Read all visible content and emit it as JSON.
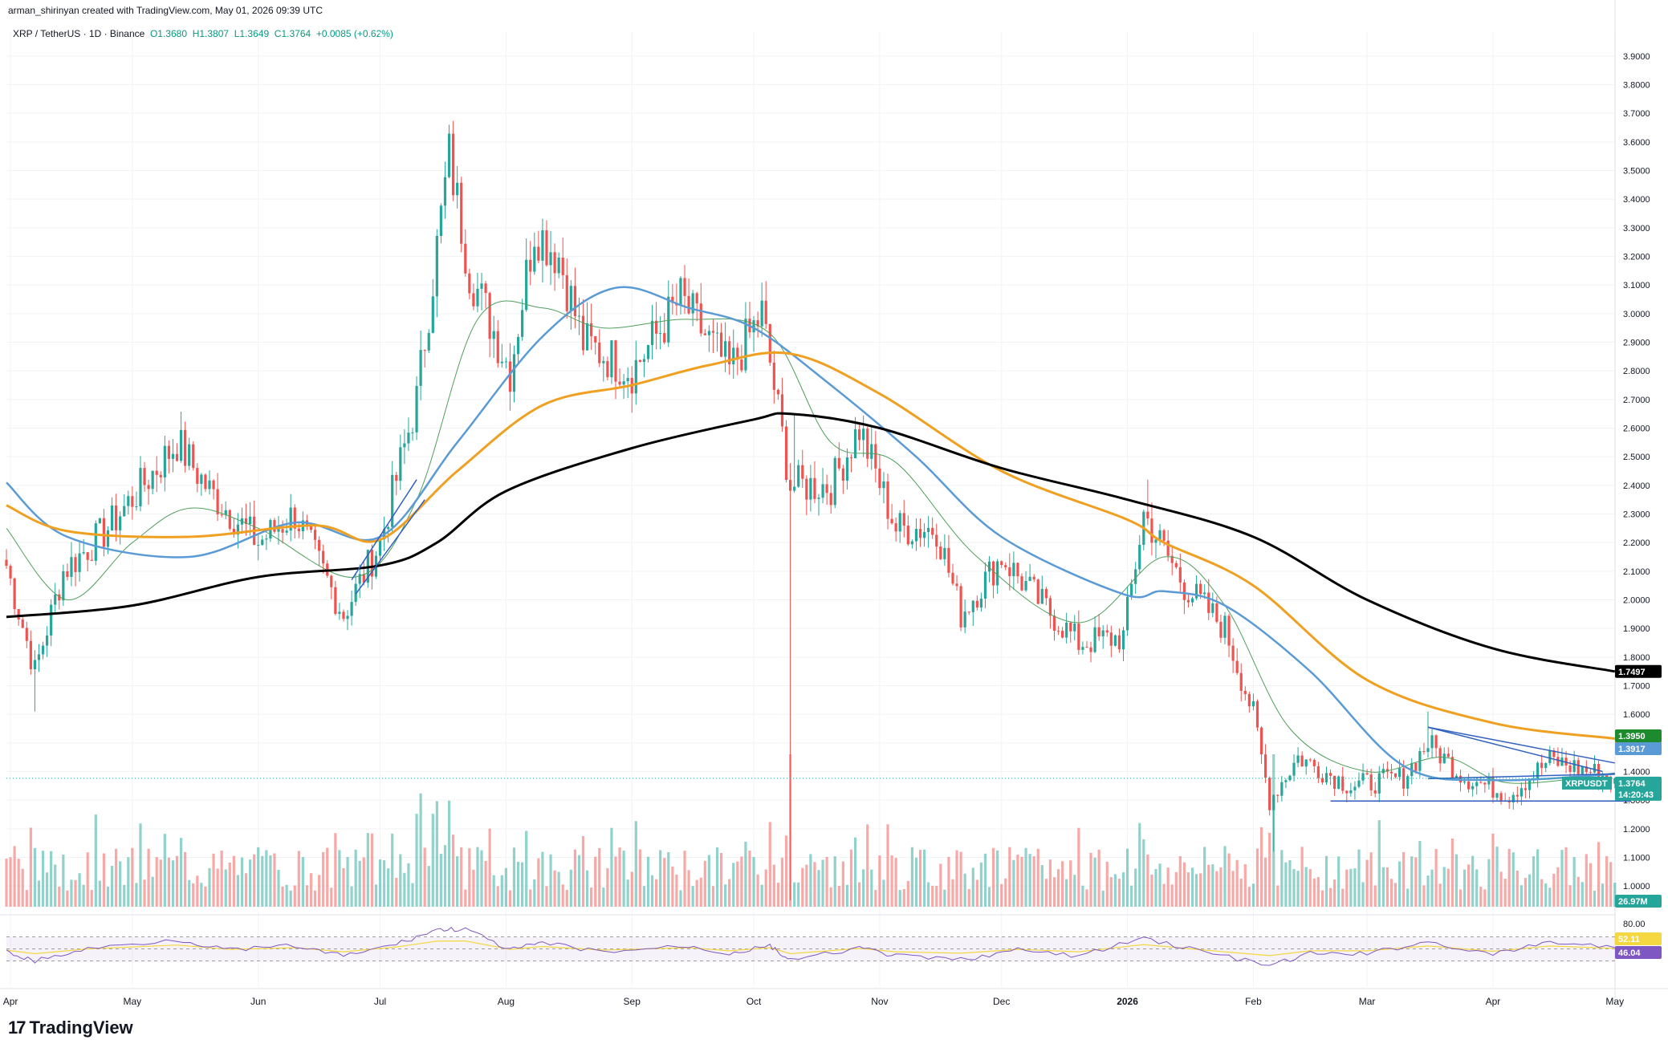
{
  "header": {
    "caption": "arman_shirinyan created with TradingView.com, May 01, 2026 09:39 UTC"
  },
  "legend": {
    "symbol": "XRP / TetherUS · 1D · Binance",
    "open": "O1.3680",
    "high": "H1.3807",
    "low": "L1.3649",
    "close": "C1.3764",
    "change": "+0.0085 (+0.62%)"
  },
  "brand": {
    "name": "TradingView",
    "logo_glyph": "17"
  },
  "colors": {
    "up": "#26a69a",
    "down": "#ef5350",
    "ema_fast": "#4f9f5a",
    "ma_50": "#5b9bd5",
    "ma_100": "#f0a020",
    "ma_200": "#000000",
    "trendline": "#3060c0",
    "rsi": "#7e57c2",
    "rsi_ma": "#f5d742"
  },
  "chart_data": {
    "type": "candlestick",
    "symbol": "XRPUSDT",
    "timeframe": "1D",
    "price_axis_ticks": [
      "3.9000",
      "3.8000",
      "3.7000",
      "3.6000",
      "3.5000",
      "3.4000",
      "3.3000",
      "3.2000",
      "3.1000",
      "3.0000",
      "2.9000",
      "2.8000",
      "2.7000",
      "2.6000",
      "2.5000",
      "2.4000",
      "2.3000",
      "2.2000",
      "2.1000",
      "2.0000",
      "1.9000",
      "1.8000",
      "1.7000",
      "1.6000",
      "1.5000",
      "1.4000",
      "1.3000",
      "1.2000",
      "1.1000",
      "1.0000"
    ],
    "price_range": [
      0.95,
      3.95
    ],
    "time_axis_labels": [
      "Apr",
      "May",
      "Jun",
      "Jul",
      "Aug",
      "Sep",
      "Oct",
      "Nov",
      "Dec",
      "2026",
      "Feb",
      "Mar",
      "Apr",
      "May"
    ],
    "ma_tags": [
      {
        "value": "1.7497",
        "color": "#000000"
      },
      {
        "value": "1.5150",
        "color": "#f0a020"
      },
      {
        "value": "1.3950",
        "color": "#1e8a2e"
      },
      {
        "value": "1.3917",
        "color": "#5b9bd5"
      }
    ],
    "price_tag": {
      "label": "XRPUSDT",
      "value": "1.3764",
      "countdown": "14:20:43"
    },
    "volume_tag": "26.97M",
    "rsi": {
      "upper": "80.00",
      "value": "52.11",
      "ma_value": "46.04"
    },
    "anchors": [
      {
        "m": "2025-03-31",
        "p": 2.12
      },
      {
        "m": "2025-04-07",
        "p": 1.75
      },
      {
        "m": "2025-04-14",
        "p": 2.1
      },
      {
        "m": "2025-04-25",
        "p": 2.25
      },
      {
        "m": "2025-05-12",
        "p": 2.55
      },
      {
        "m": "2025-05-20",
        "p": 2.38
      },
      {
        "m": "2025-06-01",
        "p": 2.2
      },
      {
        "m": "2025-06-10",
        "p": 2.3
      },
      {
        "m": "2025-06-22",
        "p": 1.95
      },
      {
        "m": "2025-07-01",
        "p": 2.2
      },
      {
        "m": "2025-07-10",
        "p": 2.7
      },
      {
        "m": "2025-07-18",
        "p": 3.55
      },
      {
        "m": "2025-07-23",
        "p": 3.15
      },
      {
        "m": "2025-08-02",
        "p": 2.8
      },
      {
        "m": "2025-08-08",
        "p": 3.3
      },
      {
        "m": "2025-08-14",
        "p": 3.2
      },
      {
        "m": "2025-08-20",
        "p": 2.9
      },
      {
        "m": "2025-09-01",
        "p": 2.8
      },
      {
        "m": "2025-09-13",
        "p": 3.05
      },
      {
        "m": "2025-09-25",
        "p": 2.8
      },
      {
        "m": "2025-10-03",
        "p": 3.0
      },
      {
        "m": "2025-10-10",
        "p": 2.4
      },
      {
        "m": "2025-10-20",
        "p": 2.4
      },
      {
        "m": "2025-10-27",
        "p": 2.6
      },
      {
        "m": "2025-11-05",
        "p": 2.25
      },
      {
        "m": "2025-11-15",
        "p": 2.25
      },
      {
        "m": "2025-11-21",
        "p": 1.95
      },
      {
        "m": "2025-12-01",
        "p": 2.15
      },
      {
        "m": "2025-12-10",
        "p": 2.0
      },
      {
        "m": "2025-12-20",
        "p": 1.85
      },
      {
        "m": "2025-12-31",
        "p": 1.87
      },
      {
        "m": "2026-01-05",
        "p": 2.3
      },
      {
        "m": "2026-01-15",
        "p": 2.05
      },
      {
        "m": "2026-01-25",
        "p": 1.9
      },
      {
        "m": "2026-02-01",
        "p": 1.6
      },
      {
        "m": "2026-02-05",
        "p": 1.3
      },
      {
        "m": "2026-02-12",
        "p": 1.45
      },
      {
        "m": "2026-02-25",
        "p": 1.35
      },
      {
        "m": "2026-03-10",
        "p": 1.38
      },
      {
        "m": "2026-03-16",
        "p": 1.5
      },
      {
        "m": "2026-03-25",
        "p": 1.38
      },
      {
        "m": "2026-04-05",
        "p": 1.32
      },
      {
        "m": "2026-04-15",
        "p": 1.44
      },
      {
        "m": "2026-04-25",
        "p": 1.4
      },
      {
        "m": "2026-05-01",
        "p": 1.3764
      }
    ],
    "spikes": [
      {
        "m": "2025-04-07",
        "low": 1.61
      },
      {
        "m": "2025-07-18",
        "high": 3.66
      },
      {
        "m": "2025-10-10",
        "low": 0.95
      },
      {
        "m": "2025-10-11",
        "high": 2.65
      },
      {
        "m": "2026-01-06",
        "high": 2.42
      },
      {
        "m": "2026-02-06",
        "low": 1.12
      },
      {
        "m": "2026-03-16",
        "high": 1.61
      }
    ],
    "overlays": {
      "ma200": [
        {
          "m": "2025-03-31",
          "p": 1.94
        },
        {
          "m": "2025-05-01",
          "p": 1.98
        },
        {
          "m": "2025-06-01",
          "p": 2.08
        },
        {
          "m": "2025-07-01",
          "p": 2.12
        },
        {
          "m": "2025-07-15",
          "p": 2.2
        },
        {
          "m": "2025-08-01",
          "p": 2.38
        },
        {
          "m": "2025-09-01",
          "p": 2.53
        },
        {
          "m": "2025-10-01",
          "p": 2.63
        },
        {
          "m": "2025-10-10",
          "p": 2.65
        },
        {
          "m": "2025-11-01",
          "p": 2.6
        },
        {
          "m": "2025-12-01",
          "p": 2.46
        },
        {
          "m": "2026-01-01",
          "p": 2.35
        },
        {
          "m": "2026-02-01",
          "p": 2.22
        },
        {
          "m": "2026-03-01",
          "p": 2.0
        },
        {
          "m": "2026-04-01",
          "p": 1.83
        },
        {
          "m": "2026-05-01",
          "p": 1.7497
        }
      ],
      "ma100": [
        {
          "m": "2025-03-31",
          "p": 2.33
        },
        {
          "m": "2025-04-15",
          "p": 2.24
        },
        {
          "m": "2025-05-15",
          "p": 2.22
        },
        {
          "m": "2025-06-15",
          "p": 2.26
        },
        {
          "m": "2025-07-01",
          "p": 2.21
        },
        {
          "m": "2025-07-20",
          "p": 2.45
        },
        {
          "m": "2025-08-10",
          "p": 2.68
        },
        {
          "m": "2025-09-01",
          "p": 2.75
        },
        {
          "m": "2025-09-20",
          "p": 2.82
        },
        {
          "m": "2025-10-10",
          "p": 2.86
        },
        {
          "m": "2025-11-01",
          "p": 2.72
        },
        {
          "m": "2025-12-01",
          "p": 2.45
        },
        {
          "m": "2026-01-01",
          "p": 2.28
        },
        {
          "m": "2026-01-10",
          "p": 2.2
        },
        {
          "m": "2026-02-01",
          "p": 2.05
        },
        {
          "m": "2026-03-01",
          "p": 1.72
        },
        {
          "m": "2026-04-01",
          "p": 1.57
        },
        {
          "m": "2026-05-01",
          "p": 1.515
        }
      ],
      "ma50": [
        {
          "m": "2025-03-31",
          "p": 2.41
        },
        {
          "m": "2025-04-15",
          "p": 2.22
        },
        {
          "m": "2025-05-15",
          "p": 2.15
        },
        {
          "m": "2025-06-10",
          "p": 2.27
        },
        {
          "m": "2025-07-01",
          "p": 2.22
        },
        {
          "m": "2025-07-20",
          "p": 2.55
        },
        {
          "m": "2025-08-10",
          "p": 2.92
        },
        {
          "m": "2025-08-28",
          "p": 3.09
        },
        {
          "m": "2025-09-15",
          "p": 3.02
        },
        {
          "m": "2025-10-01",
          "p": 2.95
        },
        {
          "m": "2025-10-20",
          "p": 2.75
        },
        {
          "m": "2025-11-10",
          "p": 2.5
        },
        {
          "m": "2025-12-01",
          "p": 2.22
        },
        {
          "m": "2025-12-31",
          "p": 2.02
        },
        {
          "m": "2026-01-10",
          "p": 2.03
        },
        {
          "m": "2026-01-25",
          "p": 1.98
        },
        {
          "m": "2026-02-15",
          "p": 1.75
        },
        {
          "m": "2026-03-10",
          "p": 1.42
        },
        {
          "m": "2026-04-01",
          "p": 1.37
        },
        {
          "m": "2026-05-01",
          "p": 1.3917
        }
      ],
      "ema20": [
        {
          "m": "2025-03-31",
          "p": 2.25
        },
        {
          "m": "2025-04-15",
          "p": 2.0
        },
        {
          "m": "2025-05-01",
          "p": 2.2
        },
        {
          "m": "2025-05-15",
          "p": 2.32
        },
        {
          "m": "2025-06-01",
          "p": 2.25
        },
        {
          "m": "2025-06-25",
          "p": 2.08
        },
        {
          "m": "2025-07-10",
          "p": 2.35
        },
        {
          "m": "2025-07-25",
          "p": 2.98
        },
        {
          "m": "2025-08-10",
          "p": 3.02
        },
        {
          "m": "2025-08-25",
          "p": 2.95
        },
        {
          "m": "2025-09-15",
          "p": 2.98
        },
        {
          "m": "2025-10-05",
          "p": 2.93
        },
        {
          "m": "2025-10-20",
          "p": 2.55
        },
        {
          "m": "2025-11-05",
          "p": 2.48
        },
        {
          "m": "2025-11-25",
          "p": 2.15
        },
        {
          "m": "2025-12-20",
          "p": 1.92
        },
        {
          "m": "2026-01-10",
          "p": 2.15
        },
        {
          "m": "2026-01-25",
          "p": 1.98
        },
        {
          "m": "2026-02-10",
          "p": 1.55
        },
        {
          "m": "2026-03-01",
          "p": 1.4
        },
        {
          "m": "2026-03-20",
          "p": 1.45
        },
        {
          "m": "2026-04-05",
          "p": 1.36
        },
        {
          "m": "2026-05-01",
          "p": 1.395
        }
      ],
      "lines": [
        {
          "a": {
            "m": "2025-06-24",
            "p": 2.07
          },
          "b": {
            "m": "2025-07-10",
            "p": 2.42
          }
        },
        {
          "a": {
            "m": "2025-06-25",
            "p": 2.02
          },
          "b": {
            "m": "2025-07-12",
            "p": 2.35
          }
        },
        {
          "a": {
            "m": "2026-03-16",
            "p": 1.555
          },
          "b": {
            "m": "2026-04-28",
            "p": 1.4
          }
        },
        {
          "a": {
            "m": "2026-03-16",
            "p": 1.555
          },
          "b": {
            "m": "2026-05-01",
            "p": 1.43
          }
        },
        {
          "a": {
            "m": "2026-03-16",
            "p": 1.375
          },
          "b": {
            "m": "2026-05-01",
            "p": 1.392
          }
        },
        {
          "a": {
            "m": "2026-02-20",
            "p": 1.297
          },
          "b": {
            "m": "2026-05-05",
            "p": 1.297
          }
        }
      ]
    },
    "rsi_series": [
      {
        "m": "2025-03-31",
        "p": 45
      },
      {
        "m": "2025-04-07",
        "p": 30
      },
      {
        "m": "2025-04-20",
        "p": 50
      },
      {
        "m": "2025-05-12",
        "p": 66
      },
      {
        "m": "2025-05-25",
        "p": 48
      },
      {
        "m": "2025-06-10",
        "p": 55
      },
      {
        "m": "2025-06-22",
        "p": 38
      },
      {
        "m": "2025-07-05",
        "p": 58
      },
      {
        "m": "2025-07-15",
        "p": 82
      },
      {
        "m": "2025-07-22",
        "p": 83
      },
      {
        "m": "2025-08-02",
        "p": 48
      },
      {
        "m": "2025-08-10",
        "p": 60
      },
      {
        "m": "2025-08-25",
        "p": 45
      },
      {
        "m": "2025-09-15",
        "p": 55
      },
      {
        "m": "2025-09-25",
        "p": 42
      },
      {
        "m": "2025-10-05",
        "p": 55
      },
      {
        "m": "2025-10-10",
        "p": 30
      },
      {
        "m": "2025-10-27",
        "p": 52
      },
      {
        "m": "2025-11-05",
        "p": 38
      },
      {
        "m": "2025-11-21",
        "p": 32
      },
      {
        "m": "2025-12-05",
        "p": 48
      },
      {
        "m": "2025-12-20",
        "p": 38
      },
      {
        "m": "2026-01-05",
        "p": 68
      },
      {
        "m": "2026-01-20",
        "p": 45
      },
      {
        "m": "2026-02-05",
        "p": 22
      },
      {
        "m": "2026-02-15",
        "p": 42
      },
      {
        "m": "2026-03-01",
        "p": 42
      },
      {
        "m": "2026-03-16",
        "p": 62
      },
      {
        "m": "2026-04-01",
        "p": 40
      },
      {
        "m": "2026-04-15",
        "p": 62
      },
      {
        "m": "2026-05-01",
        "p": 52
      }
    ]
  }
}
